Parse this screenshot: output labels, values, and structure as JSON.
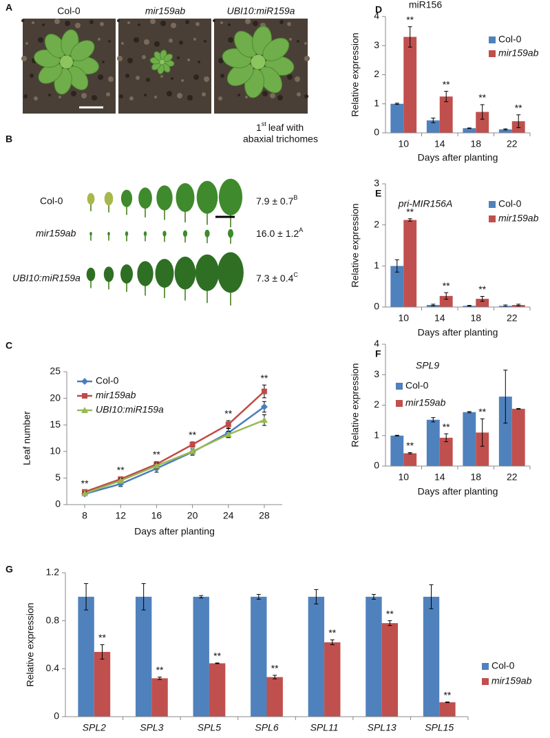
{
  "panel_labels": [
    "A",
    "B"
  ],
  "photos": {
    "labels": [
      "Col-0",
      "mir159ab",
      "UBI10:miR159a"
    ]
  },
  "leaf_series": {
    "header_number": "1",
    "header_suffix": "st",
    "header_text": "leaf with",
    "header_line2": "abaxial trichomes",
    "rows": [
      {
        "label": "Col-0",
        "value": "7.9 ± 0.7",
        "group": "B"
      },
      {
        "label": "mir159ab",
        "value": "16.0 ± 1.2",
        "group": "A"
      },
      {
        "label": "UBI10:miR159a",
        "value": "7.3 ± 0.4",
        "group": "C"
      }
    ]
  },
  "chart_data": [
    {
      "type": "line",
      "panel": "C",
      "xlabel": "Days after planting",
      "ylabel": "Leaf number",
      "x": [
        8,
        12,
        16,
        20,
        24,
        28
      ],
      "xlim": [
        6,
        30
      ],
      "xticks": [
        8,
        12,
        16,
        20,
        24,
        28
      ],
      "ylim": [
        0,
        25
      ],
      "yticks": [
        0,
        5,
        10,
        15,
        20,
        25
      ],
      "legend": "upper left",
      "series": [
        {
          "name": "Col-0",
          "color": "#4a7ebb",
          "marker": "diamond",
          "values": [
            2.0,
            3.9,
            6.8,
            9.9,
            13.5,
            18.4
          ],
          "errors": [
            0.3,
            0.5,
            0.7,
            0.6,
            0.8,
            1.0
          ]
        },
        {
          "name": "mir159ab",
          "italic": true,
          "color": "#be4b48",
          "marker": "square",
          "values": [
            2.4,
            4.8,
            7.6,
            11.3,
            15.1,
            21.3
          ],
          "errors": [
            0.3,
            0.4,
            0.5,
            0.5,
            0.7,
            1.2
          ],
          "annotations": [
            "**",
            "**",
            "**",
            "**",
            "**",
            "**"
          ]
        },
        {
          "name": "UBI10:miR159a",
          "italic": true,
          "color": "#98b954",
          "marker": "triangle",
          "values": [
            2.1,
            4.5,
            7.3,
            10.0,
            13.2,
            15.9
          ],
          "errors": [
            0.3,
            0.4,
            0.5,
            0.5,
            0.6,
            1.0
          ]
        }
      ]
    },
    {
      "type": "bar",
      "panel": "D",
      "title": "miR156",
      "xlabel": "Days after planting",
      "ylabel": "Relative expression",
      "categories": [
        "10",
        "14",
        "18",
        "22"
      ],
      "ylim": [
        0,
        4
      ],
      "yticks": [
        0,
        1,
        2,
        3,
        4
      ],
      "legend": "upper right",
      "series": [
        {
          "name": "Col-0",
          "color": "#4f81bd",
          "values": [
            1.0,
            0.43,
            0.16,
            0.12
          ],
          "errors": [
            0.02,
            0.08,
            0.01,
            0.02
          ]
        },
        {
          "name": "mir159ab",
          "italic": true,
          "color": "#c0504d",
          "values": [
            3.3,
            1.25,
            0.72,
            0.4
          ],
          "errors": [
            0.35,
            0.18,
            0.25,
            0.22
          ],
          "annotations": [
            "**",
            "**",
            "**",
            "**"
          ]
        }
      ]
    },
    {
      "type": "bar",
      "panel": "E",
      "title": "pri-MIR156A",
      "title_italic": true,
      "xlabel": "Days after planting",
      "ylabel": "Relative expression",
      "categories": [
        "10",
        "14",
        "18",
        "22"
      ],
      "ylim": [
        0,
        3
      ],
      "yticks": [
        0,
        1,
        2,
        3
      ],
      "legend": "upper right",
      "series": [
        {
          "name": "Col-0",
          "color": "#4f81bd",
          "values": [
            1.0,
            0.05,
            0.03,
            0.03
          ],
          "errors": [
            0.15,
            0.02,
            0.01,
            0.02
          ]
        },
        {
          "name": "mir159ab",
          "italic": true,
          "color": "#c0504d",
          "values": [
            2.12,
            0.27,
            0.2,
            0.05
          ],
          "errors": [
            0.03,
            0.08,
            0.06,
            0.02
          ],
          "annotations": [
            "**",
            "**",
            "**",
            null
          ]
        }
      ]
    },
    {
      "type": "bar",
      "panel": "F",
      "title": "SPL9",
      "title_italic": true,
      "xlabel": "Days after planting",
      "ylabel": "Relative expression",
      "categories": [
        "10",
        "14",
        "18",
        "22"
      ],
      "ylim": [
        0,
        4
      ],
      "yticks": [
        0,
        1,
        2,
        3,
        4
      ],
      "legend": "upper left",
      "series": [
        {
          "name": "Col-0",
          "color": "#4f81bd",
          "values": [
            1.0,
            1.52,
            1.77,
            2.28
          ],
          "errors": [
            0.01,
            0.07,
            0.02,
            0.87
          ]
        },
        {
          "name": "mir159ab",
          "italic": true,
          "color": "#c0504d",
          "values": [
            0.42,
            0.93,
            1.1,
            1.88
          ],
          "errors": [
            0.02,
            0.13,
            0.45,
            0.01
          ],
          "annotations": [
            "**",
            "**",
            "**",
            null
          ]
        }
      ]
    },
    {
      "type": "bar",
      "panel": "G",
      "ylabel": "Relative expression",
      "categories_italic": true,
      "categories": [
        "SPL2",
        "SPL3",
        "SPL5",
        "SPL6",
        "SPL11",
        "SPL13",
        "SPL15"
      ],
      "ylim": [
        0,
        1.2
      ],
      "yticks": [
        0,
        0.4,
        0.8,
        1.2
      ],
      "legend": "outside right",
      "series": [
        {
          "name": "Col-0",
          "color": "#4f81bd",
          "values": [
            1.0,
            1.0,
            1.0,
            1.0,
            1.0,
            1.0,
            1.0
          ],
          "errors": [
            0.11,
            0.11,
            0.01,
            0.02,
            0.06,
            0.02,
            0.1
          ]
        },
        {
          "name": "mir159ab",
          "italic": true,
          "color": "#c0504d",
          "values": [
            0.54,
            0.32,
            0.445,
            0.33,
            0.62,
            0.78,
            0.12
          ],
          "errors": [
            0.06,
            0.01,
            0.003,
            0.015,
            0.02,
            0.02,
            0.003
          ],
          "annotations": [
            "**",
            "**",
            "**",
            "**",
            "**",
            "**",
            "**"
          ]
        }
      ]
    }
  ]
}
